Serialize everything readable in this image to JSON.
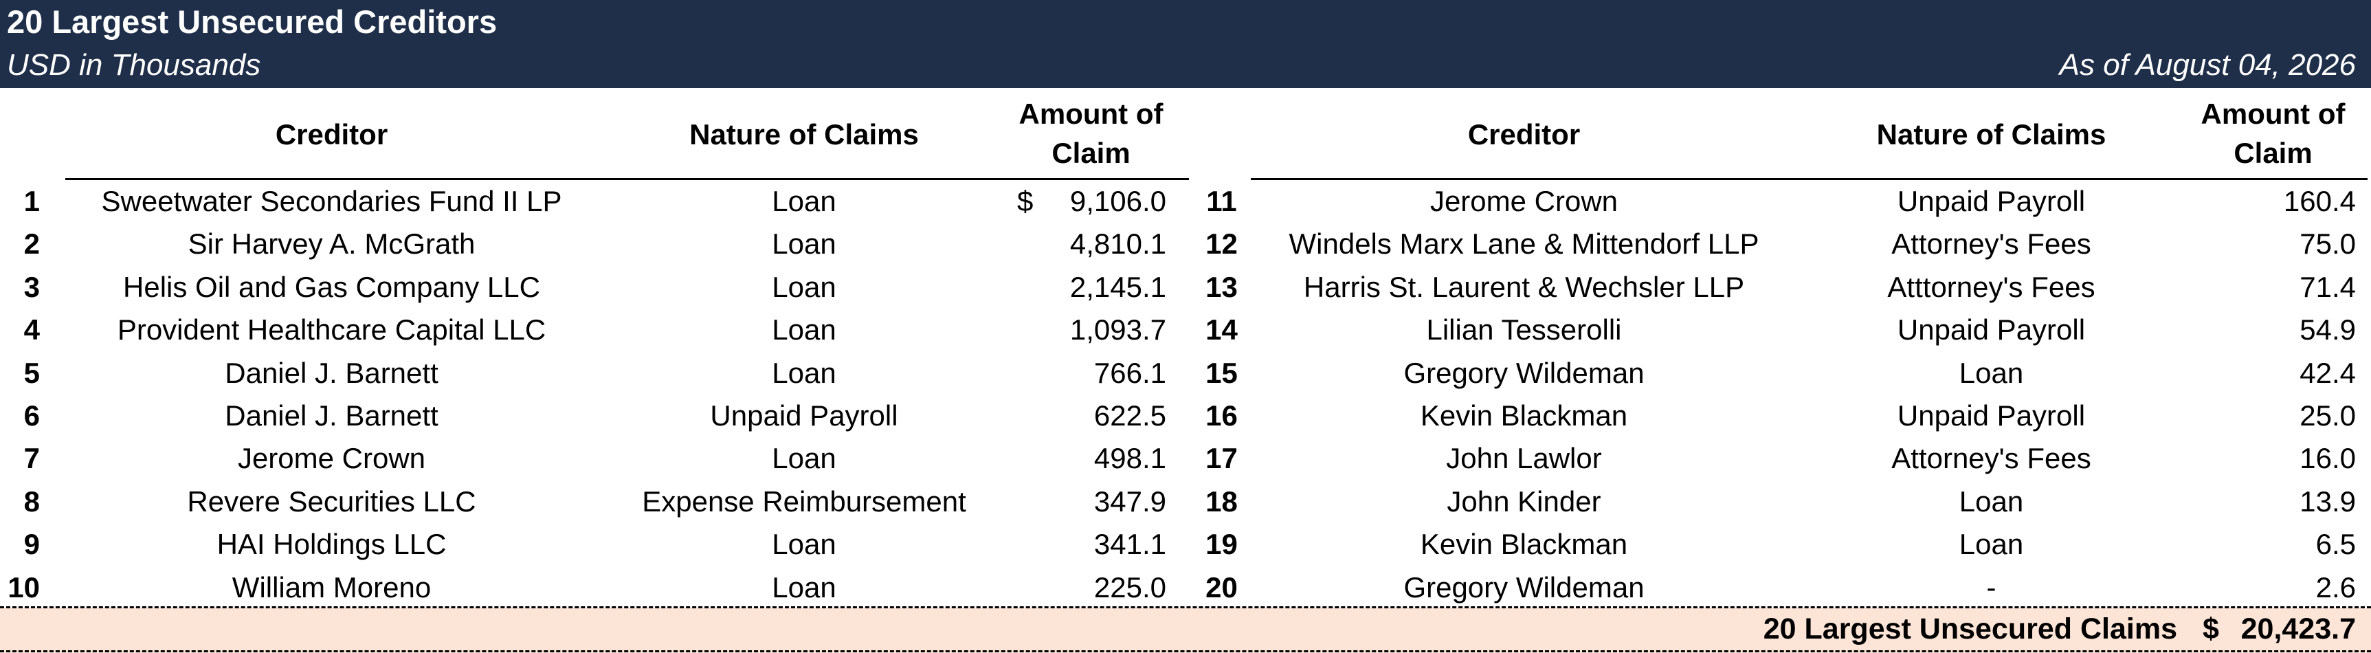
{
  "header": {
    "title": "20 Largest Unsecured Creditors",
    "subtitle": "USD in Thousands",
    "as_of": "As of August 04, 2026",
    "bg_color": "#1f2f4a"
  },
  "columns": {
    "creditor": "Creditor",
    "nature": "Nature of Claims",
    "amount_line1": "Amount of",
    "amount_line2": "Claim"
  },
  "left_rows": [
    {
      "idx": "1",
      "creditor": "Sweetwater Secondaries Fund II LP",
      "nature": "Loan",
      "dollar": "$",
      "amount": "9,106.0"
    },
    {
      "idx": "2",
      "creditor": "Sir Harvey A. McGrath",
      "nature": "Loan",
      "amount": "4,810.1"
    },
    {
      "idx": "3",
      "creditor": "Helis Oil and Gas Company LLC",
      "nature": "Loan",
      "amount": "2,145.1"
    },
    {
      "idx": "4",
      "creditor": "Provident Healthcare Capital LLC",
      "nature": "Loan",
      "amount": "1,093.7"
    },
    {
      "idx": "5",
      "creditor": "Daniel J. Barnett",
      "nature": "Loan",
      "amount": "766.1"
    },
    {
      "idx": "6",
      "creditor": "Daniel J. Barnett",
      "nature": "Unpaid Payroll",
      "amount": "622.5"
    },
    {
      "idx": "7",
      "creditor": "Jerome Crown",
      "nature": "Loan",
      "amount": "498.1"
    },
    {
      "idx": "8",
      "creditor": "Revere Securities LLC",
      "nature": "Expense Reimbursement",
      "amount": "347.9"
    },
    {
      "idx": "9",
      "creditor": "HAI Holdings LLC",
      "nature": "Loan",
      "amount": "341.1"
    },
    {
      "idx": "10",
      "creditor": "William Moreno",
      "nature": "Loan",
      "amount": "225.0"
    }
  ],
  "right_rows": [
    {
      "idx": "11",
      "creditor": "Jerome Crown",
      "nature": "Unpaid Payroll",
      "amount": "160.4"
    },
    {
      "idx": "12",
      "creditor": "Windels Marx Lane & Mittendorf LLP",
      "nature": "Attorney's Fees",
      "amount": "75.0"
    },
    {
      "idx": "13",
      "creditor": "Harris St. Laurent & Wechsler LLP",
      "nature": "Atttorney's Fees",
      "amount": "71.4"
    },
    {
      "idx": "14",
      "creditor": "Lilian Tesserolli",
      "nature": "Unpaid Payroll",
      "amount": "54.9"
    },
    {
      "idx": "15",
      "creditor": "Gregory Wildeman",
      "nature": "Loan",
      "amount": "42.4"
    },
    {
      "idx": "16",
      "creditor": "Kevin Blackman",
      "nature": "Unpaid Payroll",
      "amount": "25.0"
    },
    {
      "idx": "17",
      "creditor": "John Lawlor",
      "nature": "Attorney's Fees",
      "amount": "16.0"
    },
    {
      "idx": "18",
      "creditor": "John Kinder",
      "nature": "Loan",
      "amount": "13.9"
    },
    {
      "idx": "19",
      "creditor": "Kevin Blackman",
      "nature": "Loan",
      "amount": "6.5"
    },
    {
      "idx": "20",
      "creditor": "Gregory Wildeman",
      "nature": "-",
      "amount": "2.6"
    }
  ],
  "total": {
    "label": "20 Largest Unsecured Claims",
    "dollar": "$",
    "value": "20,423.7",
    "band_color": "#fce4d6"
  }
}
